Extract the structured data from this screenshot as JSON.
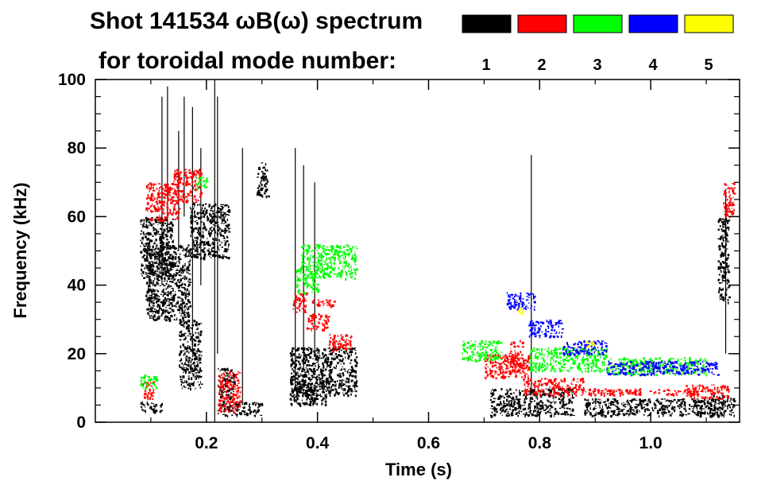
{
  "chart_data": {
    "type": "scatter",
    "title_line1": "Shot 141534 ωB(ω) spectrum",
    "title_line2": "for toroidal mode number:",
    "xlabel": "Time (s)",
    "ylabel": "Frequency (kHz)",
    "xlim": [
      0,
      1.16
    ],
    "ylim": [
      0,
      100
    ],
    "x_ticks": [
      0.2,
      0.4,
      0.6,
      0.8,
      1.0
    ],
    "x_tick_labels": [
      "0.2",
      "0.4",
      "0.6",
      "0.8",
      "1.0"
    ],
    "y_ticks": [
      0,
      20,
      40,
      60,
      80,
      100
    ],
    "y_tick_labels": [
      "0",
      "20",
      "40",
      "60",
      "80",
      "100"
    ],
    "grid": false,
    "legend_placement": "top-right",
    "series": [
      {
        "name": "1",
        "color": "#000000",
        "blobs": [
          [
            0.08,
            0.14,
            42,
            60
          ],
          [
            0.09,
            0.17,
            30,
            52
          ],
          [
            0.08,
            0.12,
            3,
            6
          ],
          [
            0.15,
            0.19,
            10,
            30
          ],
          [
            0.17,
            0.24,
            48,
            64
          ],
          [
            0.22,
            0.3,
            2,
            6
          ],
          [
            0.22,
            0.25,
            6,
            16
          ],
          [
            0.29,
            0.31,
            66,
            76
          ],
          [
            0.35,
            0.47,
            8,
            22
          ],
          [
            0.35,
            0.42,
            5,
            14
          ],
          [
            0.71,
            0.86,
            2,
            10
          ],
          [
            0.88,
            1.13,
            2,
            7
          ],
          [
            1.11,
            1.15,
            2,
            8
          ],
          [
            1.12,
            1.14,
            35,
            60
          ]
        ],
        "spikes": [
          [
            0.12,
            40,
            95
          ],
          [
            0.13,
            55,
            98
          ],
          [
            0.15,
            50,
            85
          ],
          [
            0.16,
            60,
            95
          ],
          [
            0.175,
            20,
            92
          ],
          [
            0.19,
            40,
            80
          ],
          [
            0.215,
            0,
            100
          ],
          [
            0.22,
            20,
            95
          ],
          [
            0.265,
            5,
            80
          ],
          [
            0.36,
            10,
            80
          ],
          [
            0.375,
            15,
            75
          ],
          [
            0.395,
            20,
            70
          ],
          [
            0.785,
            8,
            78
          ],
          [
            1.135,
            20,
            68
          ]
        ]
      },
      {
        "name": "2",
        "color": "#ff0000",
        "blobs": [
          [
            0.09,
            0.15,
            59,
            70
          ],
          [
            0.14,
            0.19,
            64,
            74
          ],
          [
            0.085,
            0.105,
            7,
            12
          ],
          [
            0.22,
            0.26,
            3,
            15
          ],
          [
            0.355,
            0.38,
            32,
            38
          ],
          [
            0.38,
            0.42,
            27,
            32
          ],
          [
            0.42,
            0.46,
            21,
            26
          ],
          [
            0.39,
            0.43,
            34,
            36
          ],
          [
            0.745,
            0.77,
            15,
            24
          ],
          [
            0.7,
            0.78,
            13,
            20
          ],
          [
            0.77,
            0.88,
            8,
            13
          ],
          [
            0.88,
            1.08,
            8,
            10
          ],
          [
            1.06,
            1.14,
            7,
            11
          ],
          [
            1.13,
            1.15,
            60,
            70
          ]
        ]
      },
      {
        "name": "3",
        "color": "#00ff00",
        "blobs": [
          [
            0.37,
            0.47,
            42,
            52
          ],
          [
            0.36,
            0.4,
            38,
            45
          ],
          [
            0.66,
            0.73,
            18,
            24
          ],
          [
            0.78,
            0.92,
            15,
            22
          ],
          [
            0.92,
            1.1,
            14,
            19
          ],
          [
            0.08,
            0.11,
            10,
            14
          ],
          [
            0.18,
            0.2,
            68,
            72
          ]
        ]
      },
      {
        "name": "4",
        "color": "#0000ff",
        "blobs": [
          [
            0.74,
            0.79,
            33,
            38
          ],
          [
            0.78,
            0.84,
            25,
            30
          ],
          [
            0.84,
            0.92,
            20,
            24
          ],
          [
            0.92,
            1.12,
            14,
            18
          ]
        ]
      },
      {
        "name": "5",
        "color": "#ffff00",
        "blobs": [
          [
            0.76,
            0.77,
            32,
            35
          ],
          [
            0.88,
            0.9,
            22,
            24
          ]
        ]
      }
    ]
  }
}
